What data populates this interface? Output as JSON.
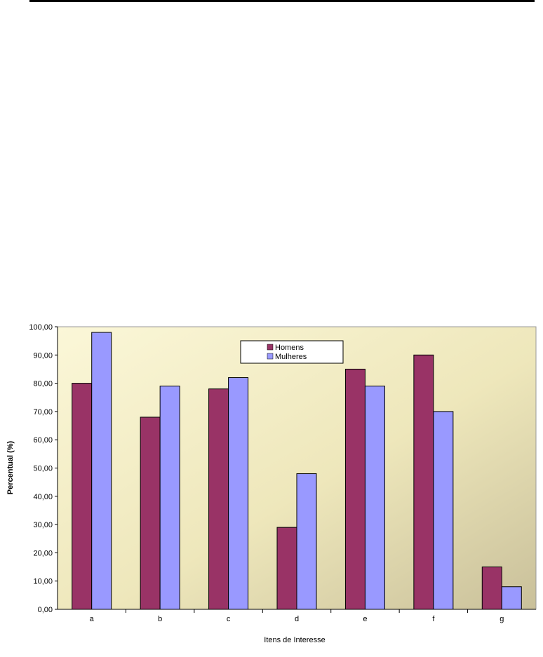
{
  "chart_data": {
    "type": "bar",
    "categories": [
      "a",
      "b",
      "c",
      "d",
      "e",
      "f",
      "g"
    ],
    "series": [
      {
        "name": "Homens",
        "values": [
          80,
          68,
          78,
          29,
          85,
          90,
          15
        ],
        "color": "#993366"
      },
      {
        "name": "Mulheres",
        "values": [
          98,
          79,
          82,
          48,
          79,
          70,
          8
        ],
        "color": "#9999ff"
      }
    ],
    "xlabel": "Itens de Interesse",
    "ylabel": "Percentual (%)",
    "ylim": [
      0,
      100
    ],
    "ytick_labels": [
      "0,00",
      "10,00",
      "20,00",
      "30,00",
      "40,00",
      "50,00",
      "60,00",
      "70,00",
      "80,00",
      "90,00",
      "100,00"
    ],
    "legend_position": "top-center",
    "grid": false,
    "plot_background": "#f2edc2"
  }
}
